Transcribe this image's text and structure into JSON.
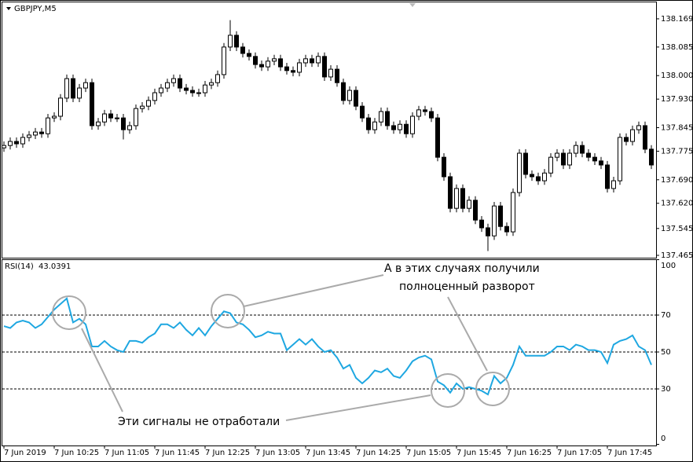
{
  "chart_data": [
    {
      "type": "candlestick",
      "title": "GBPJPY,M5",
      "up_color": "#ffffff",
      "down_color": "#000000",
      "line_color": "#000000",
      "ylim": [
        137.458,
        138.225
      ],
      "yticks": [
        138.169,
        138.085,
        {
          "value": 138,
          "label": "138.000"
        },
        {
          "value": 137.93,
          "label": "137.930"
        },
        137.845,
        137.775,
        {
          "value": 137.69,
          "label": "137.690"
        },
        {
          "value": 137.62,
          "label": "137.620"
        },
        137.545,
        137.465
      ],
      "open": [
        137.785,
        137.792,
        137.804,
        137.797,
        137.816,
        137.823,
        137.832,
        137.827,
        137.874,
        137.879,
        137.933,
        137.991,
        137.933,
        137.963,
        137.979,
        137.851,
        137.862,
        137.886,
        137.874,
        137.874,
        137.839,
        137.851,
        137.902,
        137.909,
        137.926,
        137.949,
        137.963,
        137.979,
        137.991,
        137.963,
        137.956,
        137.949,
        137.949,
        137.972,
        137.979,
        138.003,
        138.085,
        138.12,
        138.085,
        138.066,
        138.057,
        138.033,
        138.026,
        138.043,
        138.05,
        138.026,
        138.015,
        138.01,
        138.038,
        138.05,
        138.038,
        138.057,
        137.996,
        138.019,
        137.979,
        137.926,
        137.956,
        137.909,
        137.874,
        137.839,
        137.862,
        137.893,
        137.851,
        137.839,
        137.855,
        137.827,
        137.879,
        137.898,
        137.893,
        137.874,
        137.757,
        137.699,
        137.605,
        137.664,
        137.605,
        137.629,
        137.57,
        137.547,
        137.523,
        137.612,
        137.551,
        137.535,
        137.652,
        137.769,
        137.706,
        137.699,
        137.687,
        137.71,
        137.757,
        137.769,
        137.734,
        137.769,
        137.792,
        137.769,
        137.757,
        137.746,
        137.734,
        137.664,
        137.687,
        137.816,
        137.804,
        137.839,
        137.851,
        137.781
      ],
      "high": [
        137.804,
        137.816,
        137.816,
        137.828,
        137.835,
        137.844,
        137.844,
        137.886,
        137.891,
        137.945,
        138.003,
        138.003,
        137.975,
        137.991,
        137.991,
        137.874,
        137.898,
        137.898,
        137.886,
        137.886,
        137.863,
        137.914,
        137.921,
        137.938,
        137.961,
        137.975,
        137.991,
        138.003,
        138.003,
        137.975,
        137.968,
        137.961,
        137.984,
        137.991,
        138.015,
        138.097,
        138.165,
        138.132,
        138.097,
        138.078,
        138.069,
        138.045,
        138.055,
        138.062,
        138.062,
        138.038,
        138.027,
        138.05,
        138.062,
        138.062,
        138.069,
        138.069,
        138.031,
        138.031,
        137.991,
        137.968,
        137.968,
        137.921,
        137.886,
        137.874,
        137.905,
        137.905,
        137.863,
        137.867,
        137.867,
        137.891,
        137.91,
        137.91,
        137.905,
        137.886,
        137.769,
        137.711,
        137.676,
        137.676,
        137.641,
        137.641,
        137.582,
        137.559,
        137.624,
        137.624,
        137.563,
        137.664,
        137.781,
        137.781,
        137.718,
        137.711,
        137.722,
        137.769,
        137.781,
        137.781,
        137.781,
        137.804,
        137.804,
        137.781,
        137.769,
        137.758,
        137.746,
        137.699,
        137.828,
        137.828,
        137.851,
        137.863,
        137.863,
        137.793
      ],
      "low": [
        137.773,
        137.78,
        137.785,
        137.785,
        137.804,
        137.811,
        137.815,
        137.815,
        137.862,
        137.867,
        137.921,
        137.921,
        137.921,
        137.951,
        137.839,
        137.839,
        137.85,
        137.862,
        137.862,
        137.81,
        137.827,
        137.839,
        137.89,
        137.897,
        137.914,
        137.937,
        137.951,
        137.967,
        137.951,
        137.944,
        137.937,
        137.937,
        137.937,
        137.96,
        137.967,
        137.991,
        138.073,
        138.073,
        138.054,
        138.045,
        138.021,
        138.014,
        138.014,
        138.031,
        138.014,
        138.003,
        137.998,
        137.998,
        138.026,
        138.026,
        138.026,
        137.984,
        137.984,
        137.967,
        137.914,
        137.914,
        137.897,
        137.862,
        137.827,
        137.827,
        137.85,
        137.839,
        137.827,
        137.827,
        137.815,
        137.815,
        137.867,
        137.881,
        137.862,
        137.745,
        137.687,
        137.593,
        137.593,
        137.593,
        137.593,
        137.558,
        137.535,
        137.478,
        137.511,
        137.539,
        137.523,
        137.523,
        137.64,
        137.694,
        137.687,
        137.675,
        137.675,
        137.698,
        137.745,
        137.722,
        137.722,
        137.757,
        137.757,
        137.745,
        137.734,
        137.722,
        137.652,
        137.652,
        137.675,
        137.792,
        137.792,
        137.827,
        137.769,
        137.722
      ],
      "close": [
        137.792,
        137.804,
        137.797,
        137.816,
        137.823,
        137.832,
        137.827,
        137.874,
        137.879,
        137.933,
        137.991,
        137.933,
        137.963,
        137.979,
        137.851,
        137.862,
        137.886,
        137.874,
        137.874,
        137.839,
        137.851,
        137.902,
        137.909,
        137.926,
        137.949,
        137.963,
        137.979,
        137.991,
        137.963,
        137.956,
        137.949,
        137.949,
        137.972,
        137.979,
        138.003,
        138.085,
        138.12,
        138.085,
        138.066,
        138.057,
        138.033,
        138.026,
        138.043,
        138.05,
        138.026,
        138.015,
        138.01,
        138.038,
        138.05,
        138.038,
        138.057,
        137.996,
        138.019,
        137.979,
        137.926,
        137.956,
        137.909,
        137.874,
        137.839,
        137.862,
        137.893,
        137.851,
        137.839,
        137.855,
        137.827,
        137.879,
        137.898,
        137.893,
        137.874,
        137.757,
        137.699,
        137.605,
        137.664,
        137.605,
        137.629,
        137.57,
        137.547,
        137.523,
        137.612,
        137.551,
        137.535,
        137.652,
        137.769,
        137.706,
        137.699,
        137.687,
        137.71,
        137.757,
        137.769,
        137.734,
        137.769,
        137.792,
        137.769,
        137.757,
        137.746,
        137.734,
        137.664,
        137.687,
        137.816,
        137.804,
        137.839,
        137.851,
        137.781,
        137.734
      ]
    },
    {
      "type": "line",
      "title": "RSI(14)",
      "color": "#1ea7e1",
      "ylim": [
        0,
        100
      ],
      "yticks": [
        100,
        70,
        50,
        30,
        0
      ],
      "categories": [
        "7 Jun 2019",
        null,
        null,
        null,
        null,
        null,
        null,
        null,
        "7 Jun 10:25",
        null,
        null,
        null,
        null,
        null,
        null,
        null,
        "7 Jun 11:05",
        null,
        null,
        null,
        null,
        null,
        null,
        null,
        "7 Jun 11:45",
        null,
        null,
        null,
        null,
        null,
        null,
        null,
        "7 Jun 12:25",
        null,
        null,
        null,
        null,
        null,
        null,
        null,
        "7 Jun 13:05",
        null,
        null,
        null,
        null,
        null,
        null,
        null,
        "7 Jun 13:45",
        null,
        null,
        null,
        null,
        null,
        null,
        null,
        "7 Jun 14:25",
        null,
        null,
        null,
        null,
        null,
        null,
        null,
        "7 Jun 15:05",
        null,
        null,
        null,
        null,
        null,
        null,
        null,
        "7 Jun 15:45",
        null,
        null,
        null,
        null,
        null,
        null,
        null,
        "7 Jun 16:25",
        null,
        null,
        null,
        null,
        null,
        null,
        null,
        "7 Jun 17:05",
        null,
        null,
        null,
        null,
        null,
        null,
        null,
        "7 Jun 17:45",
        null,
        null,
        null,
        null,
        null,
        null,
        null
      ],
      "values": [
        64,
        63,
        66,
        67,
        66,
        63,
        65,
        69,
        73,
        76,
        79,
        66,
        68,
        65,
        53,
        53,
        56,
        53,
        51,
        50,
        56,
        56,
        55,
        58,
        60,
        65,
        65,
        63,
        66,
        62,
        59,
        63,
        59,
        64,
        68,
        72,
        71,
        66,
        65,
        62,
        58,
        59,
        61,
        60,
        60,
        51,
        54,
        57,
        54,
        57,
        53,
        50,
        51,
        47,
        41,
        43,
        36,
        33,
        36,
        40,
        39,
        41,
        37,
        36,
        40,
        45,
        47,
        48,
        46,
        34,
        32,
        28,
        33,
        30,
        31,
        30,
        29,
        27,
        37,
        33,
        36,
        43,
        53,
        48,
        48,
        48,
        48,
        50,
        53,
        53,
        51,
        54,
        53,
        51,
        51,
        50,
        44,
        54,
        56,
        57,
        59,
        53,
        51,
        43.0391
      ]
    },
    {
      "annotations": [
        "А в этих случаях получили",
        "полноценный разворот",
        "Эти сигналы не отработали"
      ]
    }
  ]
}
